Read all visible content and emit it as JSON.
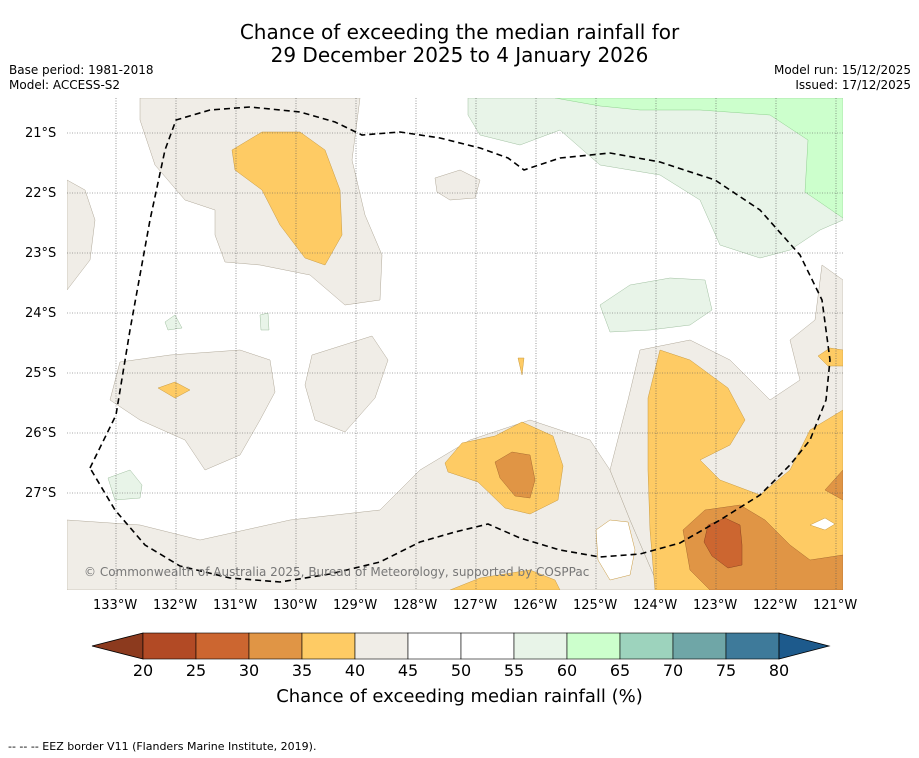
{
  "title": {
    "line1": "Chance of exceeding the median rainfall for",
    "line2": "29 December 2025 to 4 January 2026"
  },
  "meta_left": {
    "base_period": "Base period: 1981-2018",
    "model": "Model: ACCESS-S2"
  },
  "meta_right": {
    "model_run": "Model run: 15/12/2025",
    "issued": "Issued: 17/12/2025"
  },
  "map": {
    "copyright": "© Commonwealth of Australia 2025, Bureau of Meteorology, supported by COSPPac",
    "lat_labels": [
      "21°S",
      "22°S",
      "23°S",
      "24°S",
      "25°S",
      "26°S",
      "27°S"
    ],
    "lon_labels": [
      "133°W",
      "132°W",
      "131°W",
      "130°W",
      "129°W",
      "128°W",
      "127°W",
      "126°W",
      "125°W",
      "124°W",
      "123°W",
      "122°W",
      "121°W"
    ]
  },
  "colorbar": {
    "label": "Chance of exceeding median rainfall (%)",
    "ticks": [
      "20",
      "25",
      "30",
      "35",
      "40",
      "45",
      "50",
      "55",
      "60",
      "65",
      "70",
      "75",
      "80"
    ],
    "colors": [
      "#8c3a1e",
      "#b24a25",
      "#cc6630",
      "#e09545",
      "#fecb64",
      "#f0ede7",
      "#ffffff",
      "#ffffff",
      "#e8f4e8",
      "#ccffcc",
      "#9dd3bd",
      "#6fa6a7",
      "#3e7a9a",
      "#1d5a8c"
    ]
  },
  "footer": {
    "legend": "--  --  -- EEZ border V11 (Flanders Marine Institute, 2019)."
  }
}
